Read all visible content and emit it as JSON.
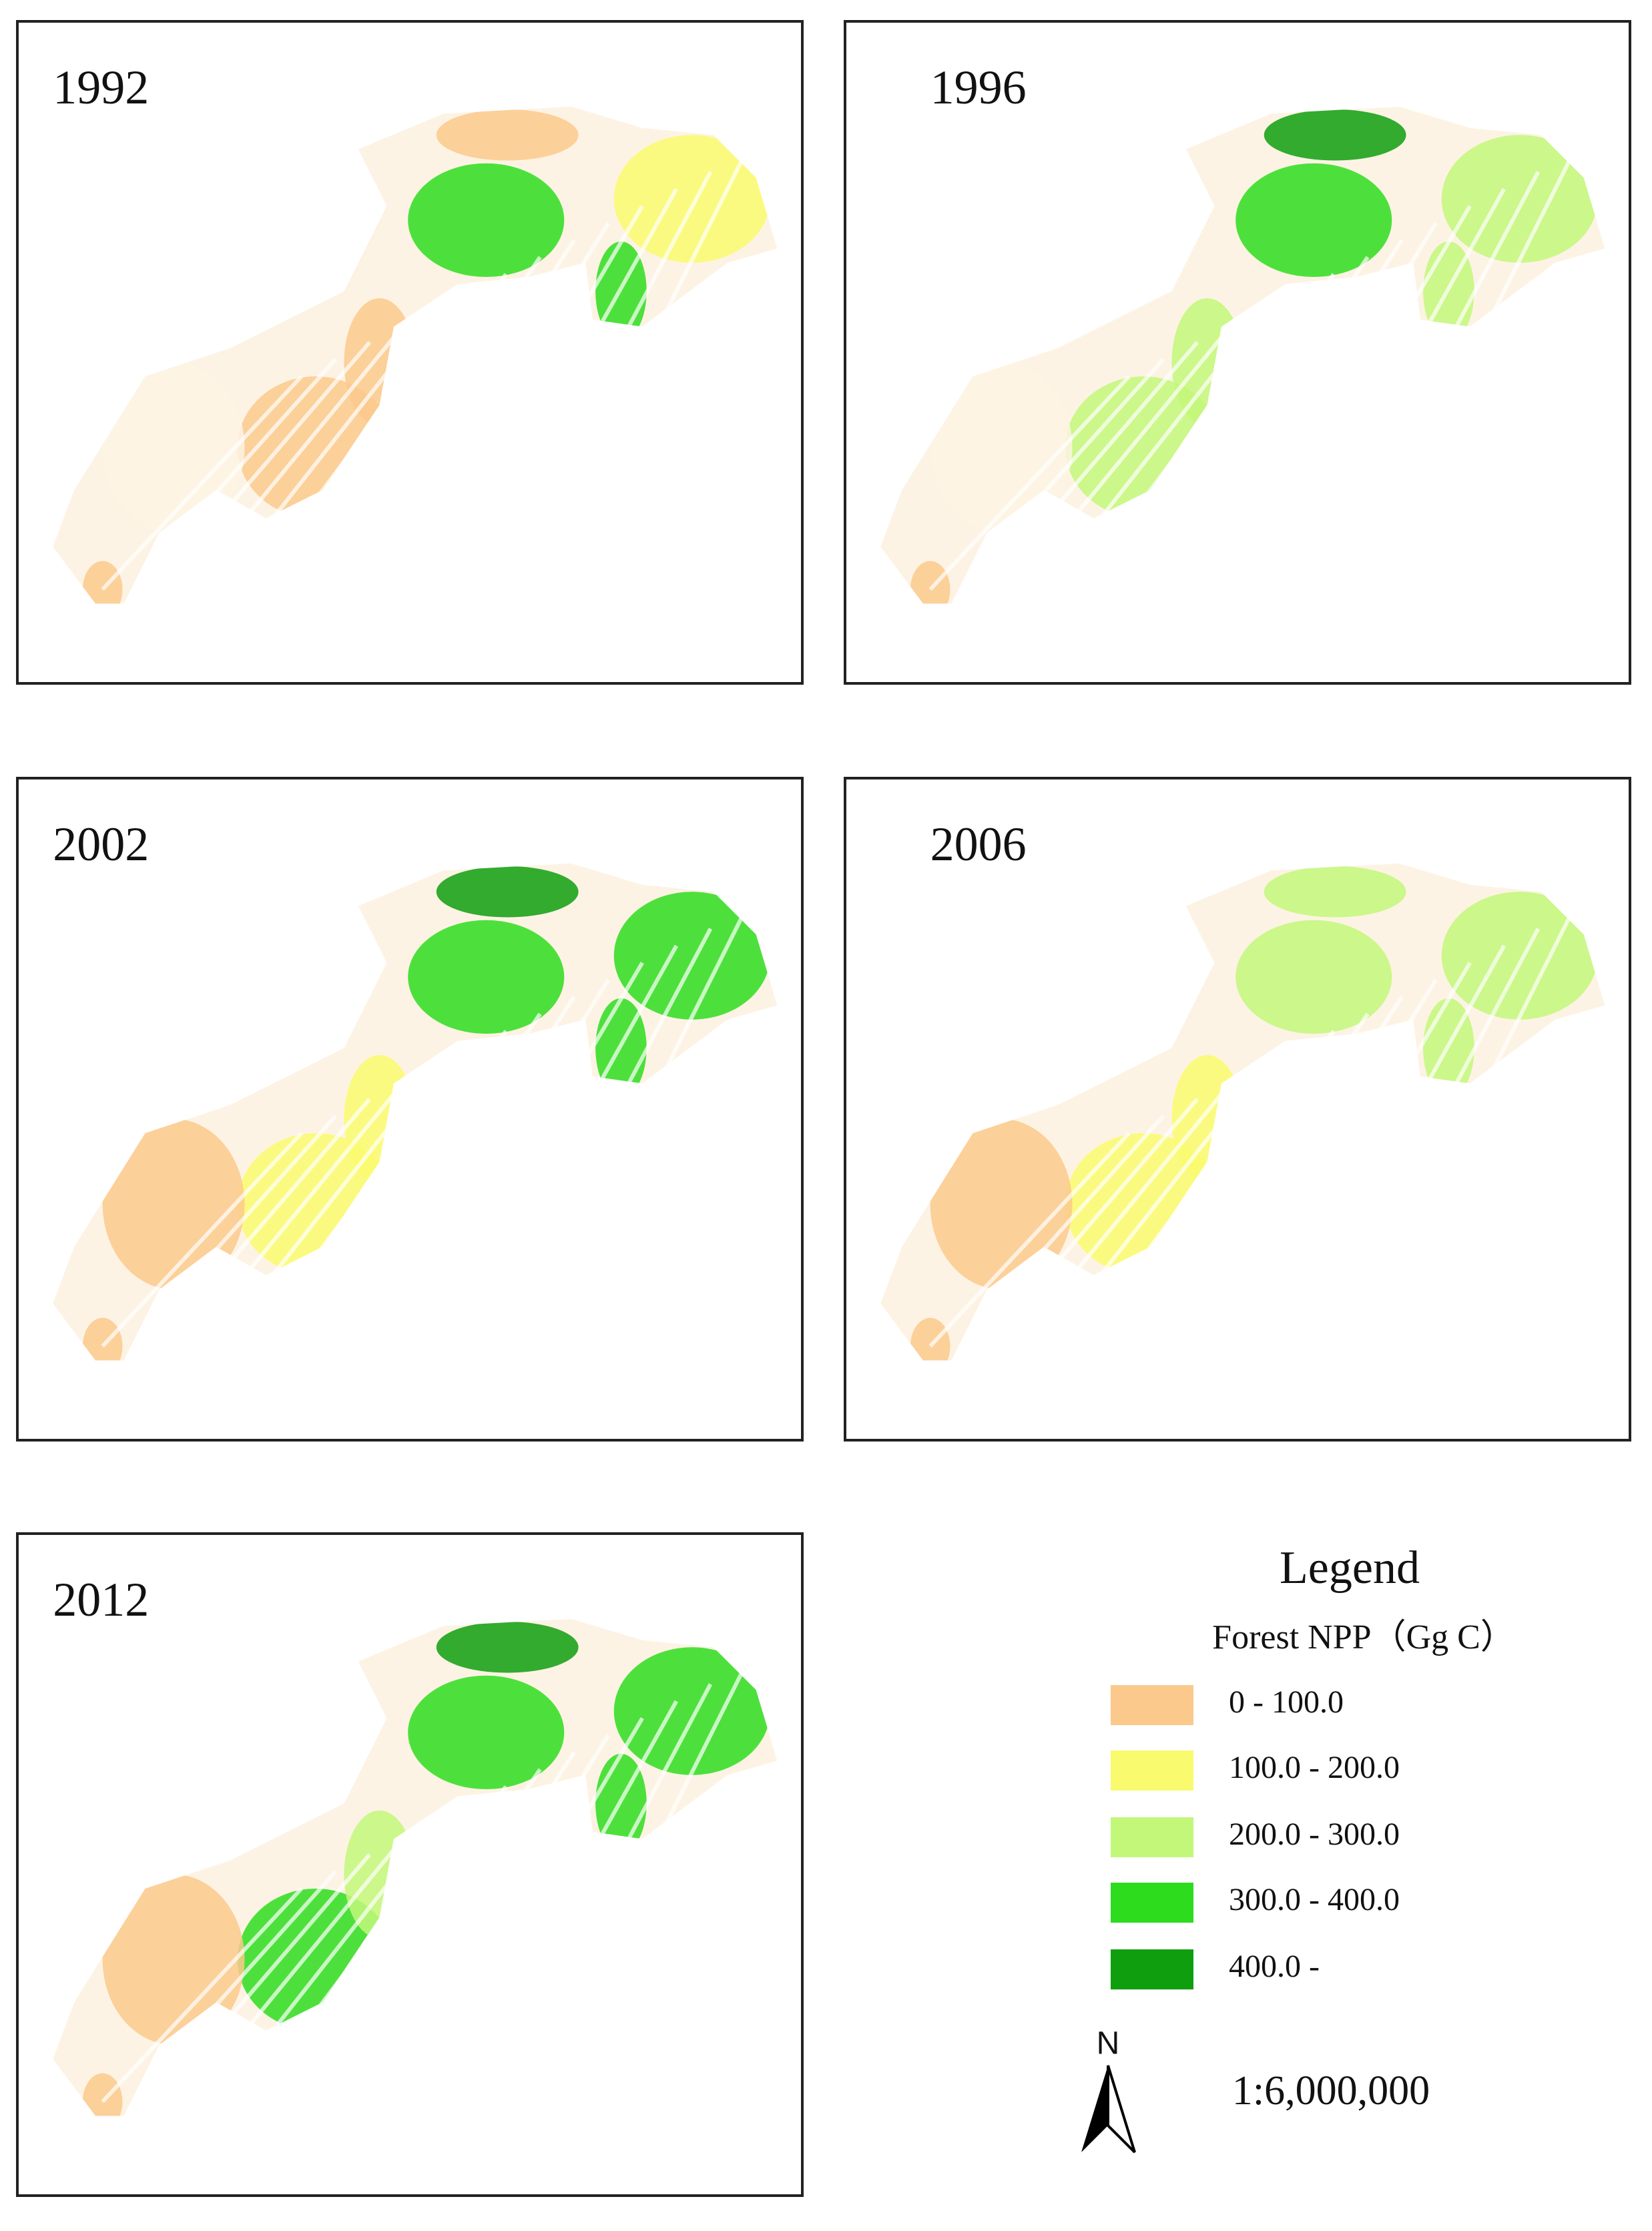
{
  "panels": [
    {
      "year": "1992"
    },
    {
      "year": "1996"
    },
    {
      "year": "2002"
    },
    {
      "year": "2006"
    },
    {
      "year": "2012"
    }
  ],
  "legend": {
    "title": "Legend",
    "subtitle": "Forest NPP（Gg C）",
    "items": [
      {
        "label": "0 - 100.0",
        "color": "#fbc98c"
      },
      {
        "label": "100.0 - 200.0",
        "color": "#fafa6e"
      },
      {
        "label": "200.0 - 300.0",
        "color": "#c3f77a"
      },
      {
        "label": "300.0 - 400.0",
        "color": "#2edc1e"
      },
      {
        "label": "400.0 -",
        "color": "#0e9e0e"
      }
    ]
  },
  "north": "N",
  "scale": "1:6,000,000"
}
